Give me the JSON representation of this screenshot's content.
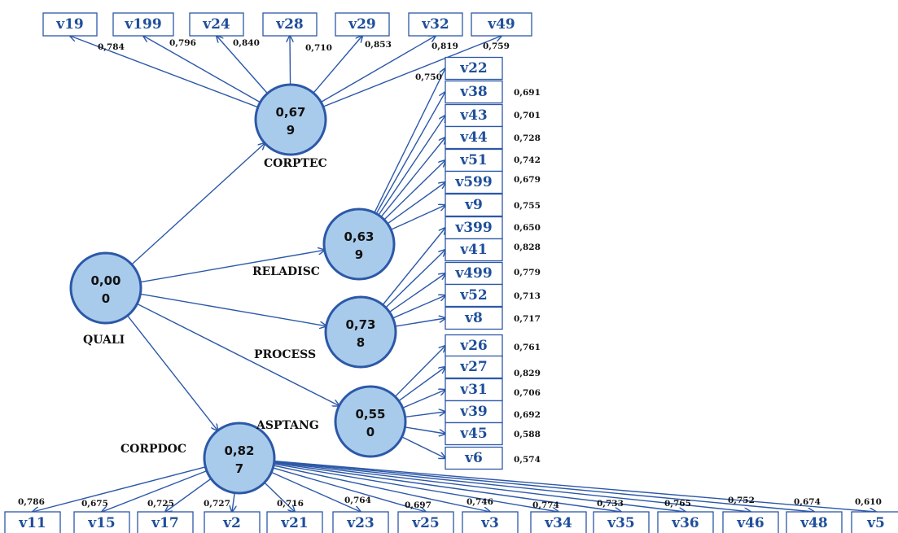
{
  "constructs": {
    "QUALI": {
      "name": "QUALI",
      "r2_line1": "0,00",
      "r2_line2": "0"
    },
    "CORPTEC": {
      "name": "CORPTEC",
      "r2_line1": "0,67",
      "r2_line2": "9"
    },
    "RELADISC": {
      "name": "RELADISC",
      "r2_line1": "0,63",
      "r2_line2": "9"
    },
    "PROCESS": {
      "name": "PROCESS",
      "r2_line1": "0,73",
      "r2_line2": "8"
    },
    "ASPTANG": {
      "name": "ASPTANG",
      "r2_line1": "0,55",
      "r2_line2": "0"
    },
    "CORPDOC": {
      "name": "CORPDOC",
      "r2_line1": "0,82",
      "r2_line2": "7"
    }
  },
  "structural_paths": [
    {
      "from": "QUALI",
      "to": "CORPTEC"
    },
    {
      "from": "QUALI",
      "to": "RELADISC"
    },
    {
      "from": "QUALI",
      "to": "PROCESS"
    },
    {
      "from": "QUALI",
      "to": "ASPTANG"
    },
    {
      "from": "QUALI",
      "to": "CORPDOC"
    }
  ],
  "indicators": {
    "CORPTEC": [
      {
        "name": "v19",
        "loading": "0,784"
      },
      {
        "name": "v199",
        "loading": "0,796"
      },
      {
        "name": "v24",
        "loading": "0,840"
      },
      {
        "name": "v28",
        "loading": "0,710"
      },
      {
        "name": "v29",
        "loading": "0,853"
      },
      {
        "name": "v32",
        "loading": "0,819"
      },
      {
        "name": "v49",
        "loading": "0,759"
      }
    ],
    "RELADISC": [
      {
        "name": "v22",
        "loading": "0,750"
      },
      {
        "name": "v38",
        "loading": "0,691"
      },
      {
        "name": "v43",
        "loading": "0,701"
      },
      {
        "name": "v44",
        "loading": "0,728"
      },
      {
        "name": "v51",
        "loading": "0,742"
      },
      {
        "name": "v599",
        "loading": "0,679"
      },
      {
        "name": "v9",
        "loading": "0,755"
      }
    ],
    "PROCESS": [
      {
        "name": "v399",
        "loading": "0,650"
      },
      {
        "name": "v41",
        "loading": "0,828"
      },
      {
        "name": "v499",
        "loading": "0,779"
      },
      {
        "name": "v52",
        "loading": "0,713"
      },
      {
        "name": "v8",
        "loading": "0,717"
      }
    ],
    "ASPTANG": [
      {
        "name": "v26",
        "loading": "0,761"
      },
      {
        "name": "v27",
        "loading": "0,829"
      },
      {
        "name": "v31",
        "loading": "0,706"
      },
      {
        "name": "v39",
        "loading": "0,692"
      },
      {
        "name": "v45",
        "loading": "0,588"
      },
      {
        "name": "v6",
        "loading": "0,574"
      }
    ],
    "CORPDOC": [
      {
        "name": "v11",
        "loading": "0,786"
      },
      {
        "name": "v15",
        "loading": "0,675"
      },
      {
        "name": "v17",
        "loading": "0,725"
      },
      {
        "name": "v2",
        "loading": "0,727"
      },
      {
        "name": "v21",
        "loading": "0,716"
      },
      {
        "name": "v23",
        "loading": "0,764"
      },
      {
        "name": "v25",
        "loading": "0,697"
      },
      {
        "name": "v3",
        "loading": "0,746"
      },
      {
        "name": "v34",
        "loading": "0,774"
      },
      {
        "name": "v35",
        "loading": "0,733"
      },
      {
        "name": "v36",
        "loading": "0,765"
      },
      {
        "name": "v46",
        "loading": "0,752"
      },
      {
        "name": "v48",
        "loading": "0,674"
      },
      {
        "name": "v5",
        "loading": "0,610"
      }
    ]
  },
  "colors": {
    "node_fill": "#a9cbeb",
    "stroke": "#2c58a8",
    "indicator_text": "#1f4f9a"
  }
}
